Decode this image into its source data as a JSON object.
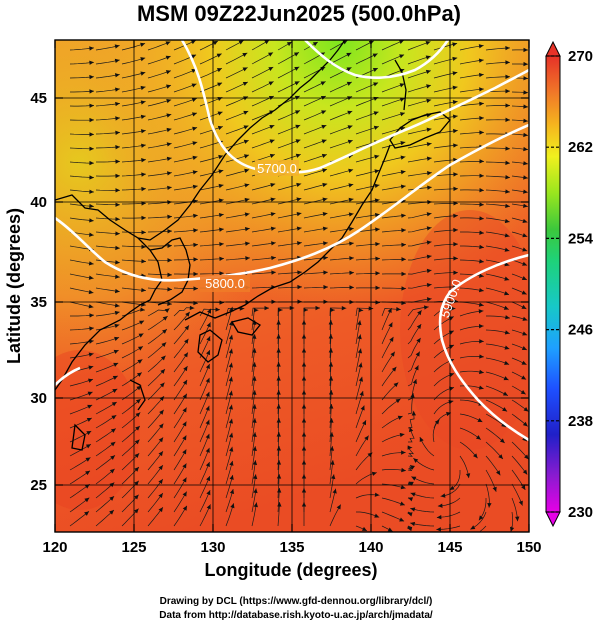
{
  "title": "MSM 09Z22Jun2025 (500.0hPa)",
  "x_axis": {
    "label": "Longitude (degrees)",
    "ticks": [
      120,
      125,
      130,
      135,
      140,
      145,
      150
    ]
  },
  "y_axis": {
    "label": "Latitude  (degrees)",
    "ticks": [
      25,
      30,
      35,
      40,
      45
    ]
  },
  "colorbar": {
    "ticks": [
      230,
      238,
      246,
      254,
      262,
      270
    ],
    "min": 230,
    "max": 270,
    "colors": [
      "#e600e6",
      "#8a1bd0",
      "#2020c8",
      "#1e78ff",
      "#17c8c8",
      "#1ed27a",
      "#3cc83c",
      "#9ae61e",
      "#f0f01e",
      "#f5c81e",
      "#f59628",
      "#f06428",
      "#e63228"
    ]
  },
  "contours": [
    {
      "label": "5700.0"
    },
    {
      "label": "5800.0"
    },
    {
      "label": "5900.0"
    }
  ],
  "credits": {
    "line1": "Drawing by DCL (https://www.gfd-dennou.org/library/dcl/)",
    "line2": "Data from http://database.rish.kyoto-u.ac.jp/arch/jmadata/"
  }
}
